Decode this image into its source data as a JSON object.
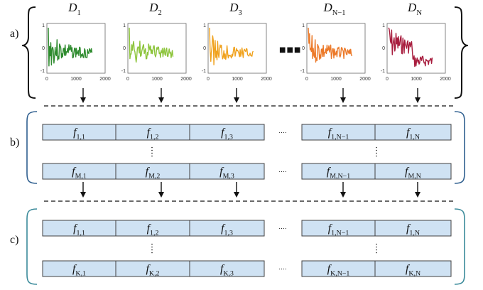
{
  "sections": {
    "a": "a)",
    "b": "b)",
    "c": "c)"
  },
  "datasets": [
    {
      "label_main": "D",
      "label_sub": "1",
      "color": "#2e8b2e"
    },
    {
      "label_main": "D",
      "label_sub": "2",
      "color": "#8cc43a"
    },
    {
      "label_main": "D",
      "label_sub": "3",
      "color": "#f0a21e"
    },
    {
      "label_main": "D",
      "label_sub": "N−1",
      "color": "#ec7a2a"
    },
    {
      "label_main": "D",
      "label_sub": "N",
      "color": "#a81d3e"
    }
  ],
  "plot_axis": {
    "y_ticks": [
      "1",
      "0",
      "-1"
    ],
    "x_ticks": [
      "0",
      "1000",
      "2000"
    ]
  },
  "ellipsis_wide": "■■■",
  "ellipsis_dots": "....",
  "feature_matrix_b": {
    "first_row": [
      {
        "main": "f",
        "sub": "1,1"
      },
      {
        "main": "f",
        "sub": "1,2"
      },
      {
        "main": "f",
        "sub": "1,3"
      },
      {
        "main": "f",
        "sub": "1,N−1"
      },
      {
        "main": "f",
        "sub": "1,N"
      }
    ],
    "last_row": [
      {
        "main": "f",
        "sub": "M,1"
      },
      {
        "main": "f",
        "sub": "M,2"
      },
      {
        "main": "f",
        "sub": "M,3"
      },
      {
        "main": "f",
        "sub": "M,N−1"
      },
      {
        "main": "f",
        "sub": "M,N"
      }
    ]
  },
  "feature_matrix_c": {
    "first_row": [
      {
        "main": "f",
        "sub": "1,1"
      },
      {
        "main": "f",
        "sub": "1,2"
      },
      {
        "main": "f",
        "sub": "1,3"
      },
      {
        "main": "f",
        "sub": "1,N−1"
      },
      {
        "main": "f",
        "sub": "1,N"
      }
    ],
    "last_row": [
      {
        "main": "f",
        "sub": "K,1"
      },
      {
        "main": "f",
        "sub": "K,2"
      },
      {
        "main": "f",
        "sub": "K,3"
      },
      {
        "main": "f",
        "sub": "K,N−1"
      },
      {
        "main": "f",
        "sub": "K,N"
      }
    ]
  },
  "colors": {
    "cell_fill": "#cfe2f3",
    "cell_stroke": "#404040",
    "bracket_b": "#2f5f8f",
    "bracket_c": "#3a8a9a",
    "text": "#111111"
  }
}
